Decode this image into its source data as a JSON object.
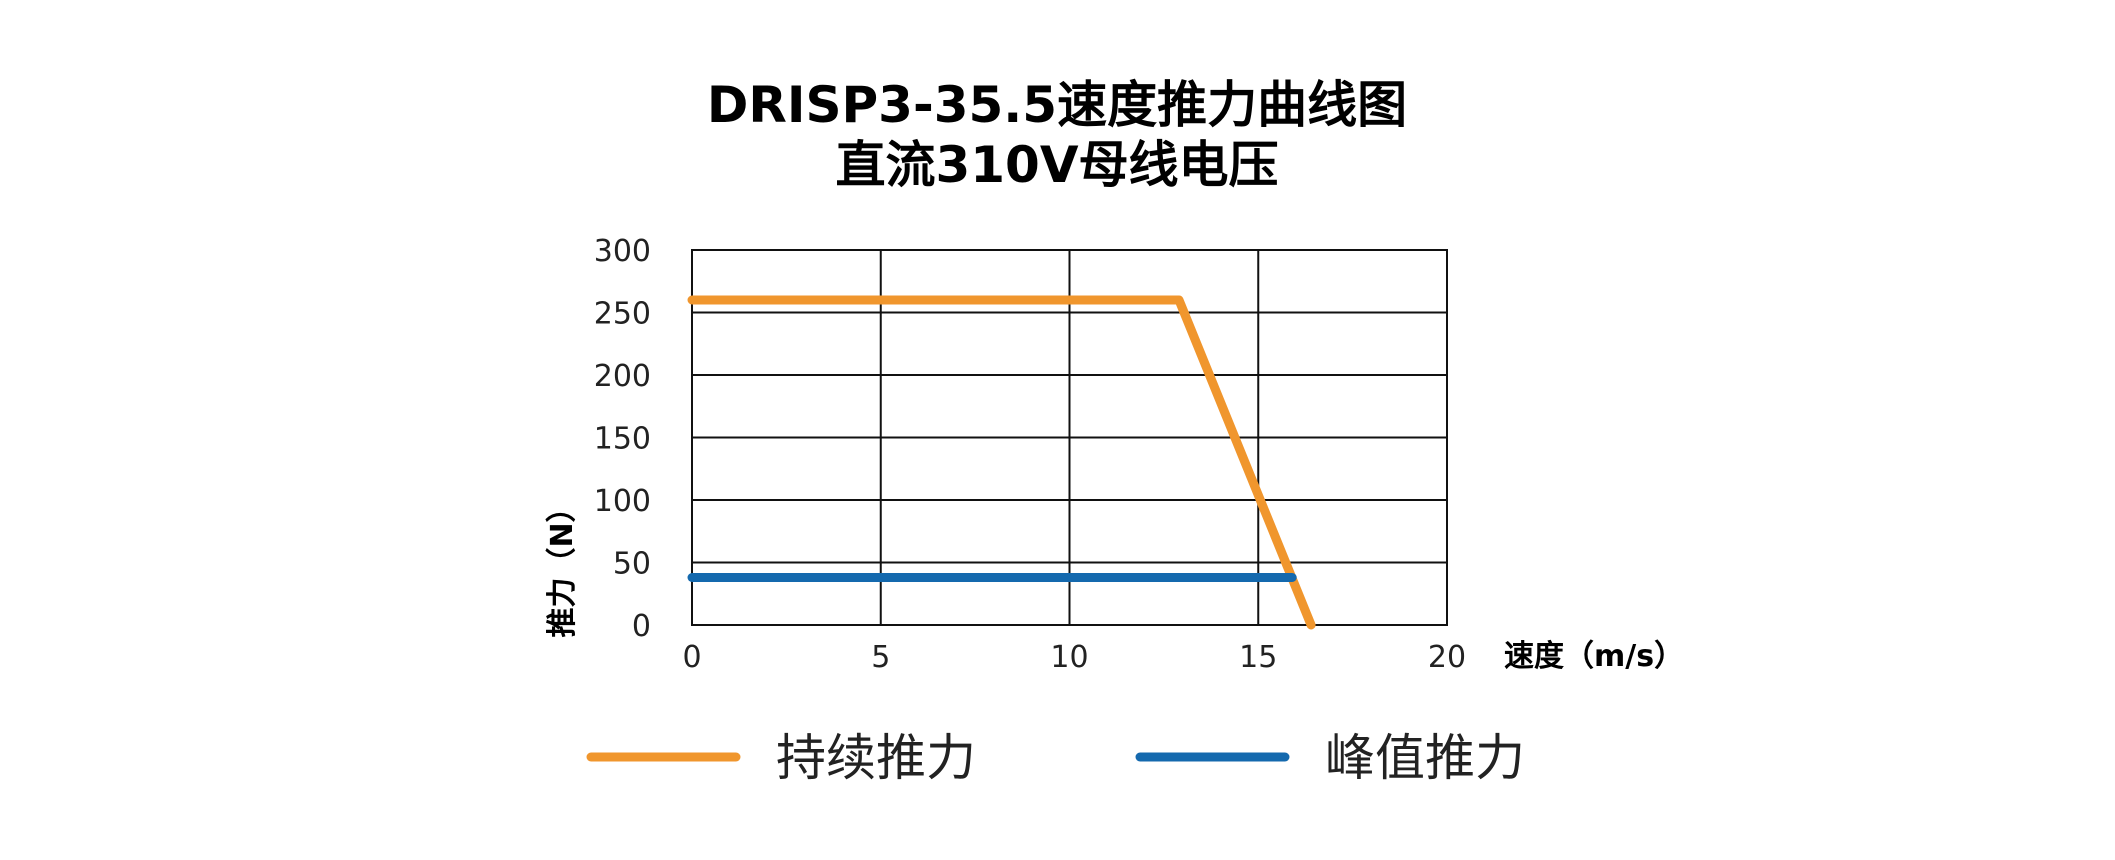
{
  "chart_data": {
    "type": "line",
    "title_lines": [
      "DRISP3-35.5速度推力曲线图",
      "直流310V母线电压"
    ],
    "xlabel": "速度（m/s）",
    "ylabel": "推力（N）",
    "xlim": [
      0,
      20
    ],
    "ylim": [
      0,
      300
    ],
    "x_ticks": [
      "0",
      "5",
      "10",
      "15",
      "20"
    ],
    "y_ticks": [
      "0",
      "50",
      "100",
      "150",
      "200",
      "250",
      "300"
    ],
    "grid": true,
    "legend_position": "bottom",
    "series": [
      {
        "name": "持续推力",
        "color": "#F0962D",
        "points": [
          [
            0,
            260
          ],
          [
            12.9,
            260
          ],
          [
            16.4,
            0
          ]
        ]
      },
      {
        "name": "峰值推力",
        "color": "#1469AE",
        "points": [
          [
            0,
            38
          ],
          [
            15.9,
            38
          ]
        ]
      }
    ]
  }
}
